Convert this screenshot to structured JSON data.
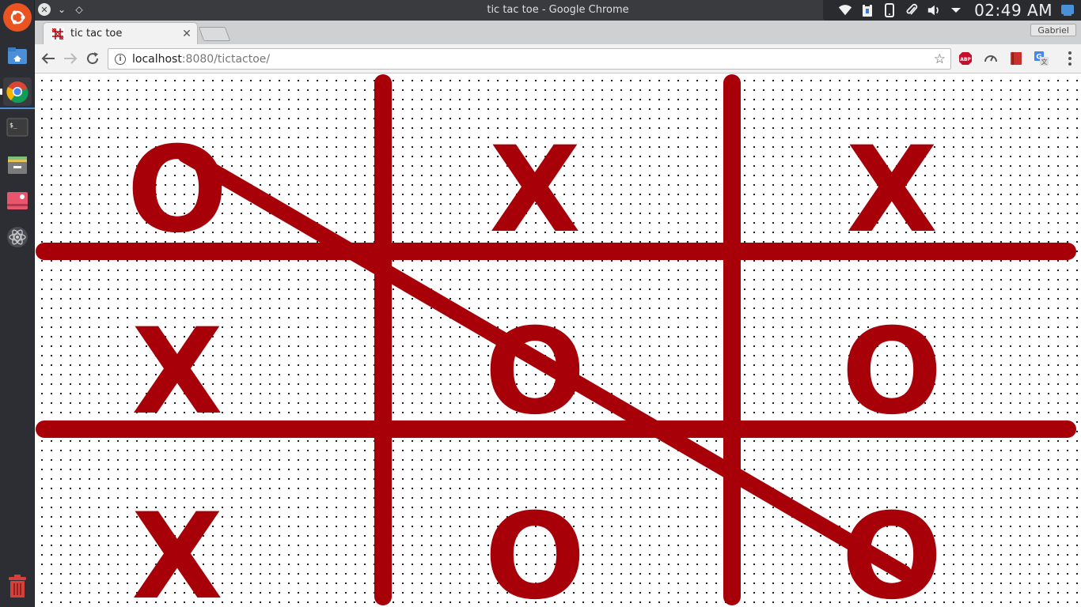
{
  "window": {
    "title": "tic tac toe - Google Chrome"
  },
  "tray": {
    "clock": "02:49 AM"
  },
  "browser": {
    "tab_title": "tic tac toe",
    "profile_name": "Gabriel",
    "url_host": "localhost",
    "url_rest": ":8080/tictactoe/"
  },
  "launcher": {
    "items": [
      "ubuntu-dash",
      "files-home",
      "google-chrome",
      "terminal",
      "files",
      "screenshot-tool",
      "atom-editor",
      "trash"
    ]
  },
  "game": {
    "board": [
      [
        "O",
        "X",
        "X"
      ],
      [
        "X",
        "O",
        "O"
      ],
      [
        "X",
        "O",
        "O"
      ]
    ],
    "winning_line": {
      "from_cell": [
        0,
        0
      ],
      "to_cell": [
        2,
        2
      ]
    },
    "mark_color": "#a80008"
  }
}
